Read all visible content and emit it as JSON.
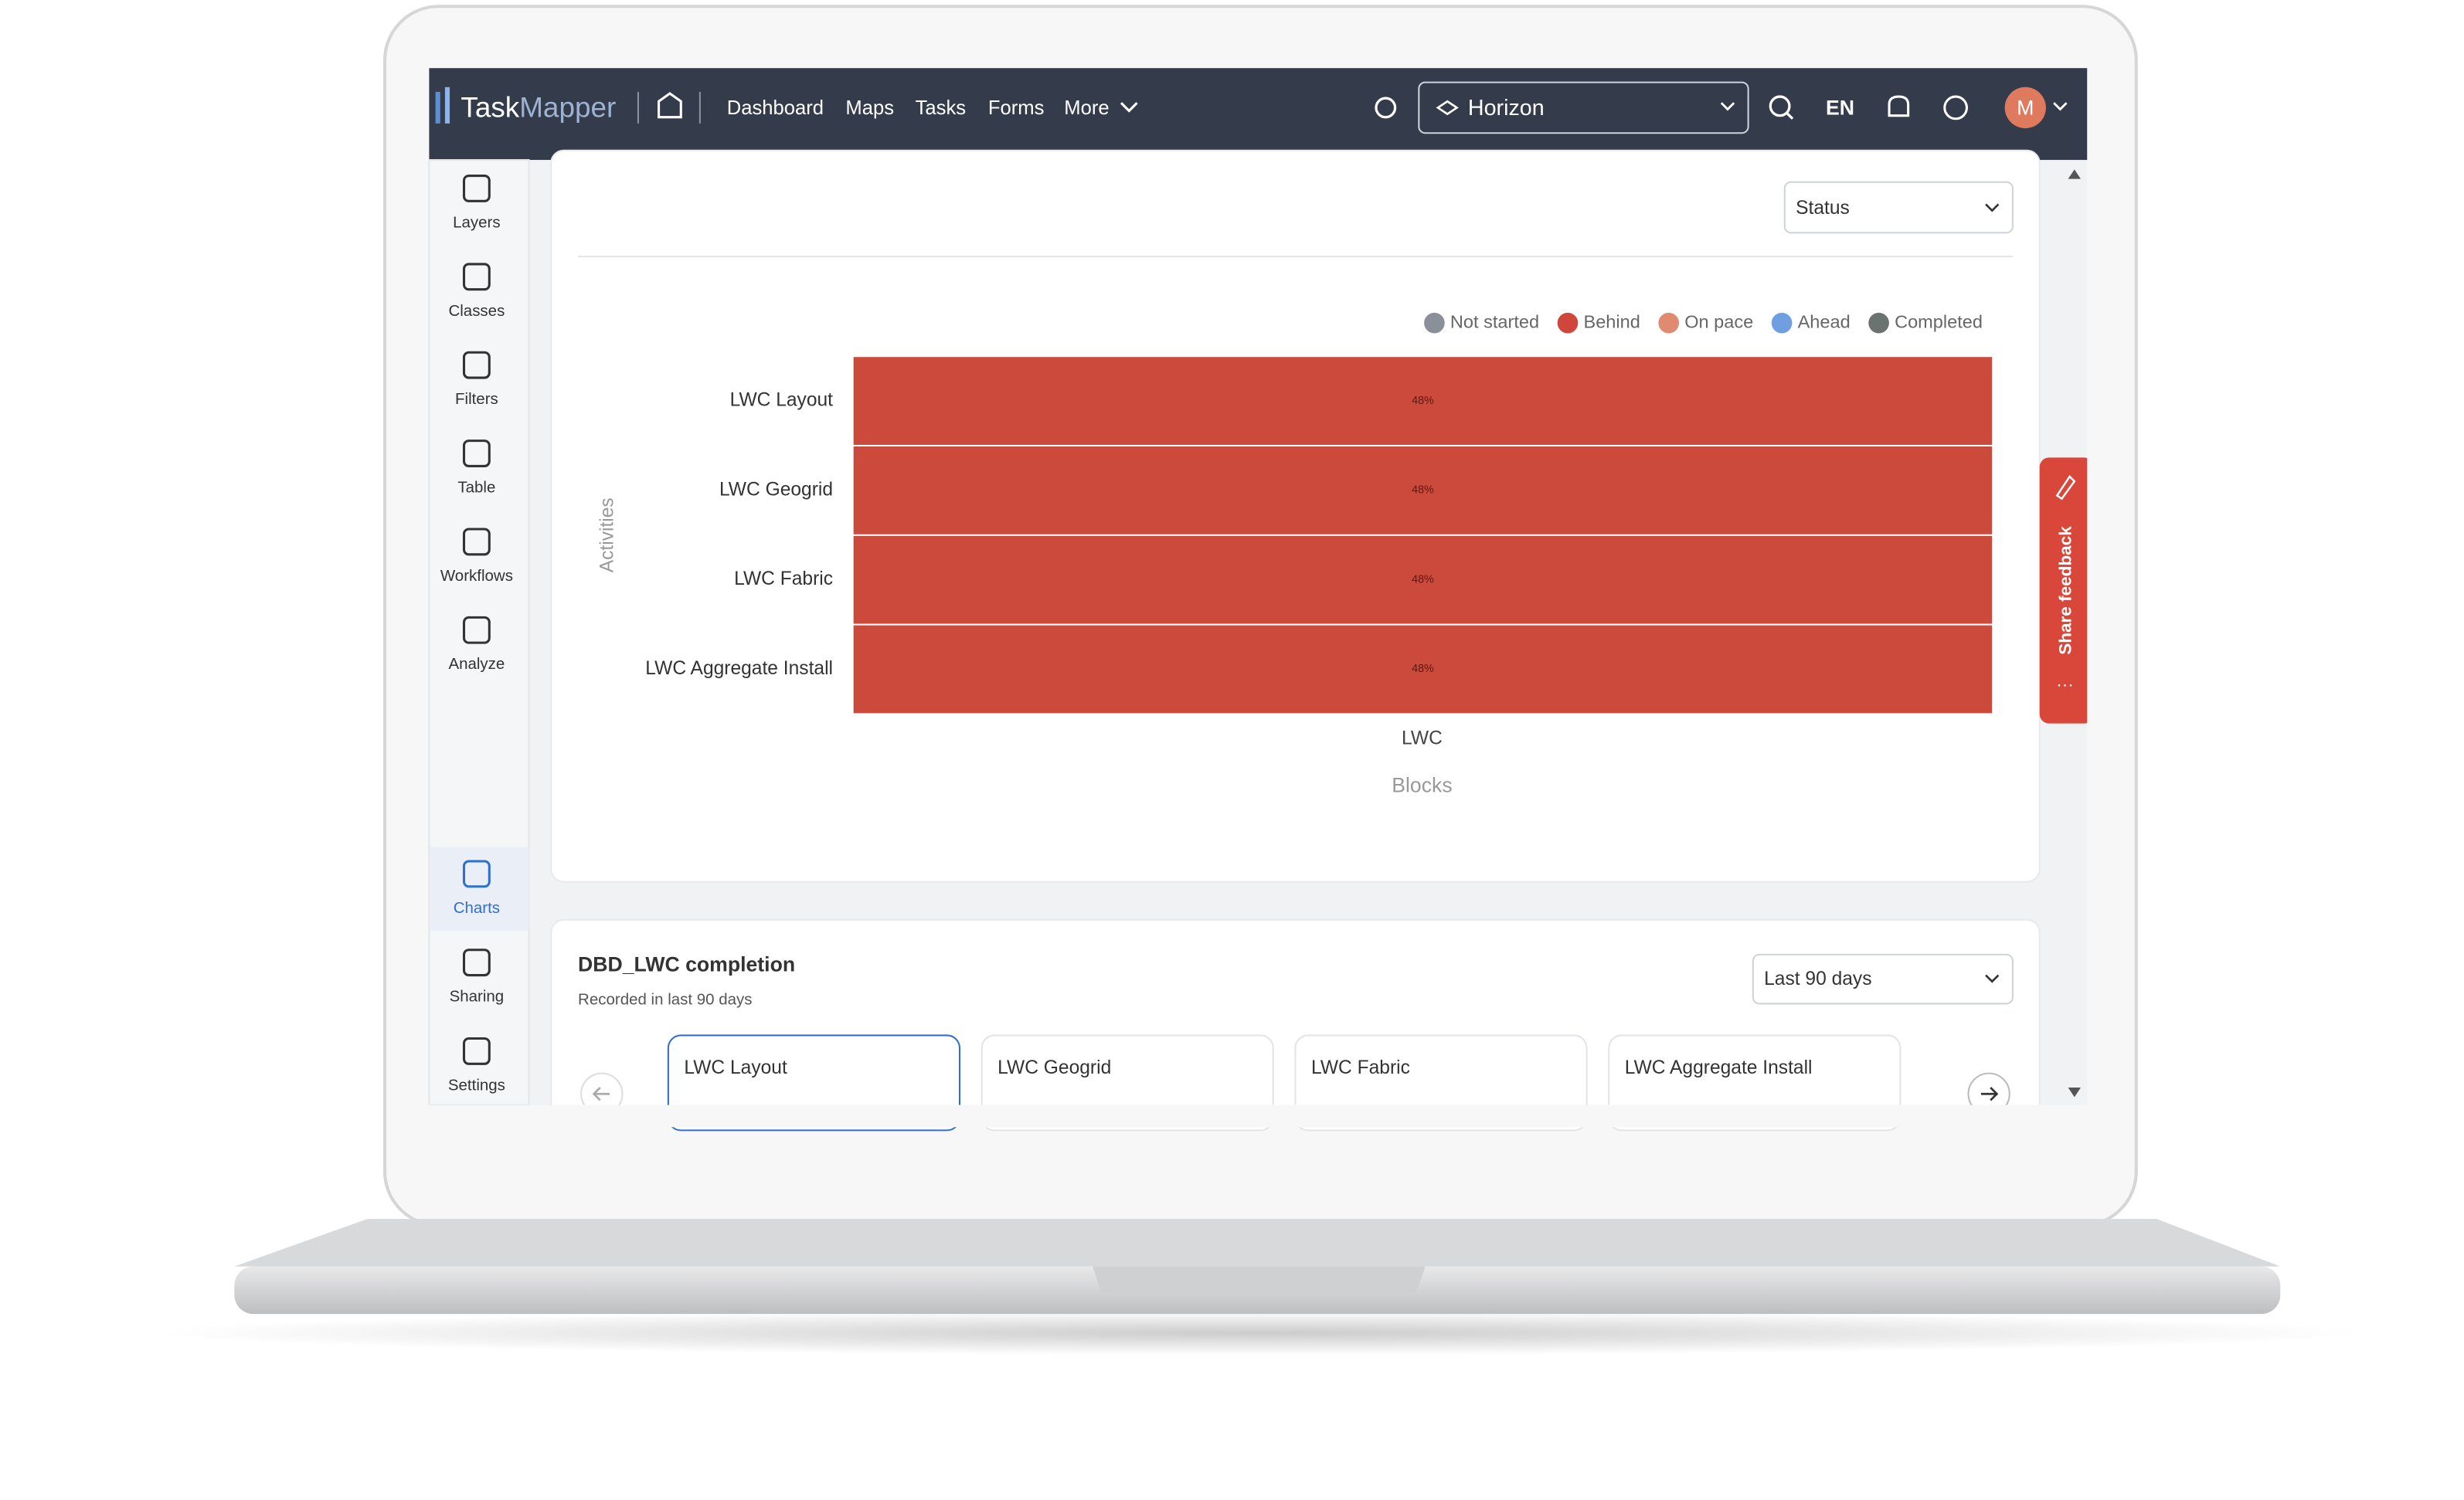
{
  "nav": {
    "logo_a": "Task",
    "logo_b": "Mapper",
    "items": [
      "Dashboard",
      "Maps",
      "Tasks",
      "Forms",
      "More"
    ],
    "project": "Horizon",
    "language": "EN",
    "avatar": "M"
  },
  "sidebar": {
    "items": [
      "Layers",
      "Classes",
      "Filters",
      "Table",
      "Workflows",
      "Analyze"
    ],
    "bottom_items": [
      "Charts",
      "Sharing",
      "Settings"
    ]
  },
  "feedback": "Share feedback",
  "chart_data": {
    "type": "heatmap",
    "filter": "Status",
    "legend": [
      {
        "name": "Not started",
        "color": "#8a9099"
      },
      {
        "name": "Behind",
        "color": "#d0463a"
      },
      {
        "name": "On pace",
        "color": "#e08a70"
      },
      {
        "name": "Ahead",
        "color": "#6f9fe0"
      },
      {
        "name": "Completed",
        "color": "#6b7370"
      }
    ],
    "categories": [
      "LWC Layout",
      "LWC Geogrid",
      "LWC Fabric",
      "LWC Aggregate Install"
    ],
    "series": [
      {
        "name": "LWC",
        "color": "#cc4a3c",
        "values": [
          48,
          48,
          48,
          48
        ],
        "value_labels": [
          "48%",
          "48%",
          "48%",
          "48%"
        ]
      }
    ],
    "ylabel": "Activities",
    "xlabel": "Blocks"
  },
  "completion": {
    "title": "DBD_LWC completion",
    "subtitle": "Recorded in last 90 days",
    "range": "Last 90 days",
    "tabs": [
      "LWC Layout",
      "LWC Geogrid",
      "LWC Fabric",
      "LWC Aggregate Install"
    ]
  }
}
